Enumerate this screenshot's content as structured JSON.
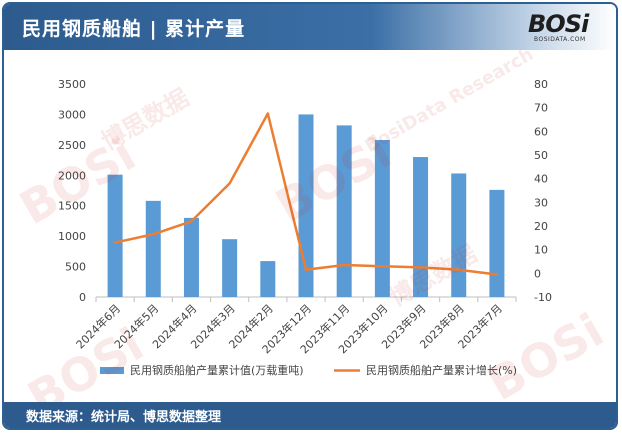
{
  "header": {
    "title": "民用钢质船舶 | 累计产量",
    "logo_text": "BOSi",
    "logo_sub": "BOSIDATA.COM"
  },
  "footer": {
    "source": "数据来源：统计局、博思数据整理"
  },
  "watermark": {
    "brand": "BOSi",
    "cn": "博思数据",
    "en": "BosiData Research",
    "site": "BOSIDATA.COM"
  },
  "colors": {
    "header_bg": "#2d5b8e",
    "bar": "#5b9bd5",
    "line": "#ed7d31",
    "axis_text": "#444444"
  },
  "chart_data": {
    "type": "bar",
    "categories": [
      "2024年6月",
      "2024年5月",
      "2024年4月",
      "2024年3月",
      "2024年2月",
      "2023年12月",
      "2023年11月",
      "2023年10月",
      "2023年9月",
      "2023年8月",
      "2023年7月"
    ],
    "series": [
      {
        "name": "民用钢质船舶产量累计值(万载重吨)",
        "type": "bar",
        "axis": "left",
        "values": [
          2010,
          1580,
          1300,
          950,
          590,
          3000,
          2820,
          2580,
          2300,
          2030,
          1760
        ]
      },
      {
        "name": "民用钢质船舶产量累计增长(%)",
        "type": "line",
        "axis": "right",
        "values": [
          13,
          16.5,
          22,
          38,
          67.5,
          1.5,
          3.5,
          3,
          2.5,
          1.5,
          -0.5
        ]
      }
    ],
    "y_left": {
      "ticks": [
        0,
        500,
        1000,
        1500,
        2000,
        2500,
        3000,
        3500
      ],
      "lim": [
        0,
        3500
      ]
    },
    "y_right": {
      "ticks": [
        -10,
        0,
        10,
        20,
        30,
        40,
        50,
        60,
        70,
        80
      ],
      "lim": [
        -10,
        80
      ]
    },
    "grid": false,
    "legend_position": "bottom"
  }
}
